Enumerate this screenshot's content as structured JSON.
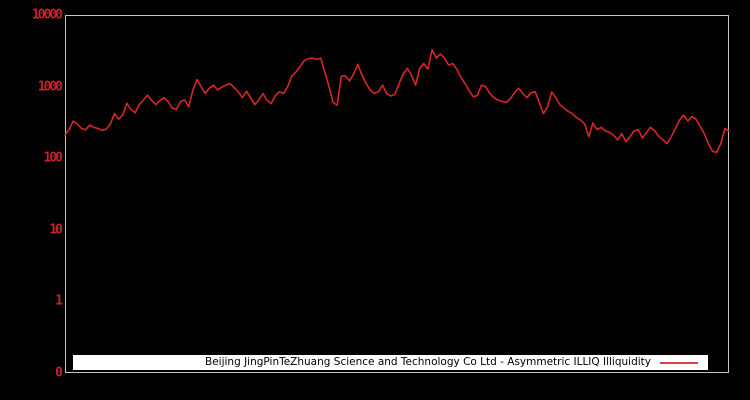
{
  "colors": {
    "background": "#000000",
    "axis_border": "#c3c3c3",
    "line": "#d62728",
    "tick_label": "#c8202c",
    "legend_background": "#ffffff",
    "legend_text": "#000000",
    "legend_swatch": "#d04545"
  },
  "chart_data": {
    "type": "line",
    "title": "",
    "legend_position": "bottom",
    "grid": false,
    "y_axis": {
      "scale": "log",
      "tick_labels": [
        "10000",
        "1000",
        "100",
        "10",
        "1",
        "0"
      ],
      "top_value": 10000
    },
    "x_axis": {
      "label": "",
      "tick_labels": []
    },
    "series": [
      {
        "name": "Beijing JingPinTeZhuang Science and Technology Co Ltd - Asymmetric ILLIQ Illiquidity",
        "color": "#d62728",
        "values": [
          210,
          250,
          330,
          300,
          260,
          250,
          290,
          270,
          260,
          245,
          255,
          300,
          420,
          350,
          400,
          585,
          480,
          430,
          560,
          650,
          760,
          640,
          560,
          640,
          700,
          620,
          500,
          480,
          620,
          650,
          520,
          900,
          1250,
          1000,
          800,
          950,
          1050,
          900,
          980,
          1050,
          1100,
          970,
          850,
          700,
          860,
          700,
          560,
          650,
          800,
          640,
          580,
          750,
          850,
          800,
          1000,
          1400,
          1600,
          1900,
          2300,
          2450,
          2500,
          2400,
          2500,
          1600,
          1000,
          600,
          550,
          1400,
          1400,
          1200,
          1500,
          2050,
          1450,
          1100,
          900,
          800,
          850,
          1050,
          800,
          740,
          780,
          1100,
          1500,
          1800,
          1450,
          1050,
          1800,
          2100,
          1750,
          3300,
          2500,
          2850,
          2500,
          2000,
          2100,
          1750,
          1350,
          1100,
          880,
          720,
          750,
          1050,
          1000,
          800,
          700,
          650,
          620,
          600,
          680,
          820,
          950,
          800,
          700,
          820,
          850,
          600,
          420,
          520,
          840,
          700,
          560,
          500,
          450,
          420,
          370,
          340,
          300,
          200,
          310,
          250,
          270,
          240,
          230,
          210,
          180,
          220,
          170,
          200,
          240,
          250,
          190,
          230,
          270,
          240,
          200,
          180,
          160,
          200,
          260,
          340,
          400,
          330,
          380,
          350,
          280,
          220,
          160,
          125,
          120,
          160,
          260,
          240
        ]
      }
    ]
  }
}
